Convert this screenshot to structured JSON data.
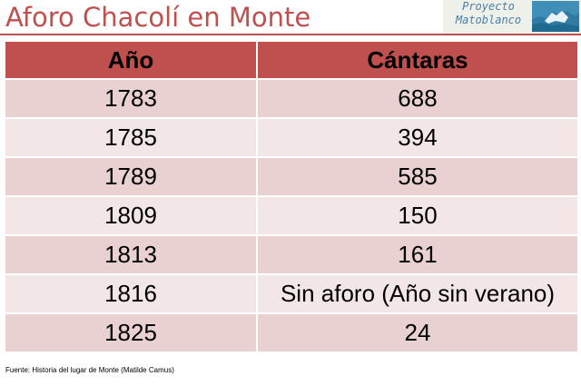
{
  "title": "Aforo Chacolí en Monte",
  "logo": {
    "line1": "Proyecto",
    "line2": "Matoblanco"
  },
  "table": {
    "headers": [
      "Año",
      "Cántaras"
    ],
    "rows": [
      [
        "1783",
        "688"
      ],
      [
        "1785",
        "394"
      ],
      [
        "1789",
        "585"
      ],
      [
        "1809",
        "150"
      ],
      [
        "1813",
        "161"
      ],
      [
        "1816",
        "Sin aforo (Año sin verano)"
      ],
      [
        "1825",
        "24"
      ]
    ]
  },
  "source": "Fuente: Historia del lugar de Monte (Matilde Camus)",
  "colors": {
    "accent": "#c0504d",
    "row_dark": "#e8d1d0",
    "row_light": "#f3e6e6"
  }
}
